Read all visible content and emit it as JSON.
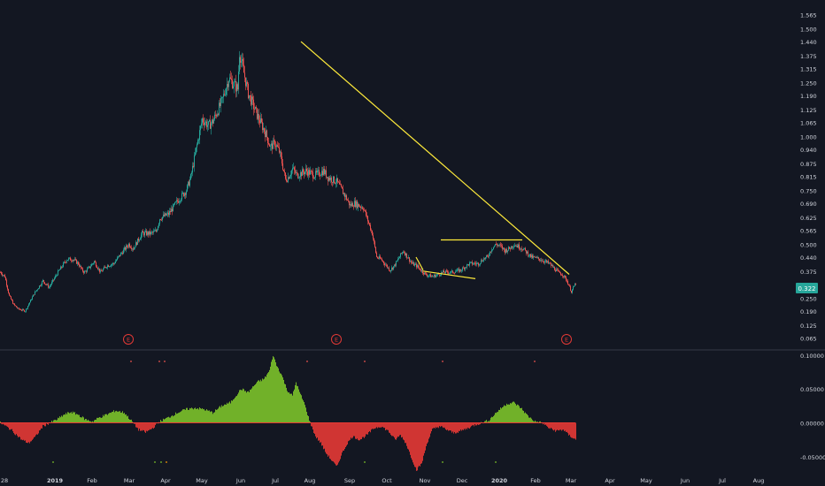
{
  "colors": {
    "background": "#131722",
    "axis_text": "#d1d4dc",
    "separator": "#363a45",
    "up": "#26a69a",
    "down": "#ef5350",
    "trendline": "#ffeb3b",
    "osc_positive": "#7cc22a",
    "osc_negative": "#e53935",
    "price_badge": "#26a69a",
    "earnings_marker": "#e53935"
  },
  "price_badge": {
    "label": "0.322"
  },
  "earnings_marker_label": "E",
  "chart_data": [
    {
      "type": "candlestick",
      "title": "",
      "price_axis_ticks": [
        "1.565",
        "1.500",
        "1.440",
        "1.375",
        "1.315",
        "1.250",
        "1.190",
        "1.125",
        "1.065",
        "1.000",
        "0.940",
        "0.875",
        "0.815",
        "0.750",
        "0.690",
        "0.625",
        "0.565",
        "0.500",
        "0.440",
        "0.375",
        "0.315",
        "0.250",
        "0.190",
        "0.125",
        "0.065"
      ],
      "ylim": [
        0.03,
        1.6
      ],
      "time_axis_labels": [
        "28",
        "2019",
        "Feb",
        "Mar",
        "Apr",
        "May",
        "Jun",
        "Jul",
        "Aug",
        "Sep",
        "Oct",
        "Nov",
        "Dec",
        "2020",
        "Feb",
        "Mar",
        "Apr",
        "May",
        "Jun",
        "Jul",
        "Aug"
      ],
      "price_path": {
        "t": [
          -2,
          0,
          5,
          10,
          15,
          20,
          28,
          38,
          48,
          55,
          65,
          75,
          82,
          88,
          92,
          95,
          100,
          106,
          113,
          120,
          128,
          135,
          145,
          150,
          160,
          170,
          176,
          180,
          185,
          190,
          200,
          210,
          215,
          222,
          228,
          235,
          240,
          250,
          258,
          268,
          270,
          280,
          290,
          300,
          305,
          310,
          315,
          318,
          322,
          325,
          330,
          335,
          340,
          345,
          350,
          355,
          360,
          365,
          370,
          380,
          390,
          395,
          400,
          410,
          420,
          425,
          430,
          440,
          445,
          455,
          465,
          470,
          475,
          480,
          488,
          495,
          500,
          510,
          520,
          530,
          540,
          545,
          550,
          555,
          560,
          565,
          570,
          575,
          580,
          590,
          600,
          610,
          615,
          620,
          625,
          630,
          635,
          640,
          645,
          650
        ],
        "close": [
          0.38,
          0.37,
          0.35,
          0.26,
          0.22,
          0.2,
          0.19,
          0.27,
          0.33,
          0.3,
          0.37,
          0.43,
          0.43,
          0.41,
          0.38,
          0.37,
          0.39,
          0.42,
          0.37,
          0.4,
          0.41,
          0.45,
          0.5,
          0.48,
          0.55,
          0.55,
          0.56,
          0.62,
          0.63,
          0.64,
          0.7,
          0.75,
          0.81,
          0.96,
          1.08,
          1.05,
          1.07,
          1.16,
          1.27,
          1.22,
          1.39,
          1.2,
          1.1,
          1.01,
          0.95,
          0.97,
          0.93,
          0.88,
          0.8,
          0.81,
          0.85,
          0.82,
          0.83,
          0.84,
          0.83,
          0.82,
          0.83,
          0.84,
          0.81,
          0.79,
          0.72,
          0.68,
          0.69,
          0.67,
          0.55,
          0.44,
          0.43,
          0.38,
          0.4,
          0.47,
          0.41,
          0.4,
          0.38,
          0.36,
          0.35,
          0.36,
          0.37,
          0.37,
          0.38,
          0.41,
          0.41,
          0.43,
          0.44,
          0.48,
          0.5,
          0.49,
          0.47,
          0.48,
          0.5,
          0.48,
          0.44,
          0.43,
          0.42,
          0.41,
          0.39,
          0.37,
          0.36,
          0.33,
          0.28,
          0.32
        ]
      },
      "trendlines": [
        {
          "label": "",
          "x1": 340,
          "y1": 1.44,
          "x2": 643,
          "y2": 0.36
        },
        {
          "label": "",
          "x1": 498,
          "y1": 0.52,
          "x2": 590,
          "y2": 0.52
        },
        {
          "label": "",
          "x1": 478,
          "y1": 0.375,
          "x2": 537,
          "y2": 0.34
        },
        {
          "label": "",
          "x1": 470,
          "y1": 0.44,
          "x2": 478,
          "y2": 0.38
        }
      ],
      "earnings_events": [
        145,
        380,
        640
      ]
    },
    {
      "type": "area",
      "title": "",
      "y_axis_ticks": [
        "0.10000",
        "0.05000",
        "0.00000",
        "-0.05000"
      ],
      "ylim": [
        -0.075,
        0.105
      ],
      "oscillator": {
        "t": [
          0,
          12,
          24,
          32,
          40,
          48,
          56,
          64,
          72,
          80,
          88,
          96,
          104,
          112,
          120,
          130,
          140,
          148,
          156,
          164,
          172,
          180,
          190,
          200,
          210,
          220,
          230,
          240,
          250,
          260,
          266,
          272,
          280,
          290,
          298,
          304,
          308,
          312,
          318,
          324,
          330,
          334,
          338,
          343,
          350,
          356,
          362,
          368,
          374,
          380,
          386,
          392,
          398,
          406,
          414,
          422,
          430,
          438,
          446,
          452,
          458,
          464,
          470,
          476,
          482,
          488,
          496,
          504,
          512,
          520,
          528,
          536,
          544,
          552,
          560,
          566,
          572,
          580,
          588,
          596,
          604,
          612,
          620,
          628,
          636,
          642,
          650
        ],
        "value": [
          0,
          -0.01,
          -0.025,
          -0.03,
          -0.02,
          -0.005,
          0.0,
          0.005,
          0.012,
          0.016,
          0.012,
          0.005,
          0.002,
          0.008,
          0.012,
          0.018,
          0.015,
          0.003,
          -0.01,
          -0.014,
          -0.008,
          0.002,
          0.008,
          0.015,
          0.02,
          0.022,
          0.02,
          0.015,
          0.025,
          0.03,
          0.04,
          0.05,
          0.045,
          0.06,
          0.065,
          0.077,
          0.1,
          0.085,
          0.07,
          0.048,
          0.04,
          0.06,
          0.045,
          0.03,
          0.0,
          -0.02,
          -0.03,
          -0.045,
          -0.055,
          -0.065,
          -0.045,
          -0.03,
          -0.02,
          -0.025,
          -0.018,
          -0.008,
          -0.005,
          -0.012,
          -0.025,
          -0.018,
          -0.03,
          -0.05,
          -0.07,
          -0.06,
          -0.03,
          -0.01,
          -0.005,
          -0.01,
          -0.015,
          -0.012,
          -0.008,
          -0.003,
          0.0,
          0.004,
          0.015,
          0.022,
          0.028,
          0.03,
          0.022,
          0.01,
          0.002,
          0.0,
          -0.008,
          -0.012,
          -0.01,
          -0.018,
          -0.025
        ]
      },
      "markers": {
        "top_red": [
          148,
          180,
          186,
          347,
          412,
          500,
          604
        ],
        "bottom_green": [
          60,
          175,
          182,
          412,
          500,
          560
        ],
        "bottom_orange": [
          188
        ]
      }
    }
  ]
}
